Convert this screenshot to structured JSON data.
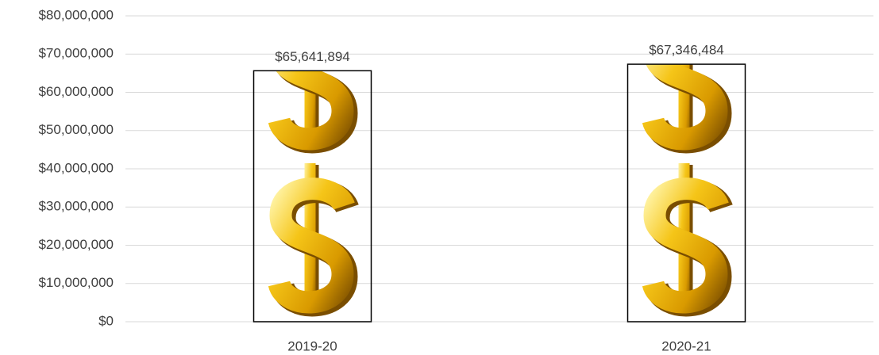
{
  "chart_data": {
    "type": "bar",
    "categories": [
      "2019-20",
      "2020-21"
    ],
    "values": [
      65641894,
      67346484
    ],
    "value_labels": [
      "$65,641,894",
      "$67,346,484"
    ],
    "color": "#f2b705",
    "ylim": [
      0,
      80000000
    ],
    "yticks": [
      {
        "value": 0,
        "label": "$0"
      },
      {
        "value": 10000000,
        "label": "$10,000,000"
      },
      {
        "value": 20000000,
        "label": "$20,000,000"
      },
      {
        "value": 30000000,
        "label": "$30,000,000"
      },
      {
        "value": 40000000,
        "label": "$40,000,000"
      },
      {
        "value": 50000000,
        "label": "$50,000,000"
      },
      {
        "value": 60000000,
        "label": "$60,000,000"
      },
      {
        "value": 70000000,
        "label": "$70,000,000"
      },
      {
        "value": 80000000,
        "label": "$80,000,000"
      }
    ],
    "grid": true
  }
}
